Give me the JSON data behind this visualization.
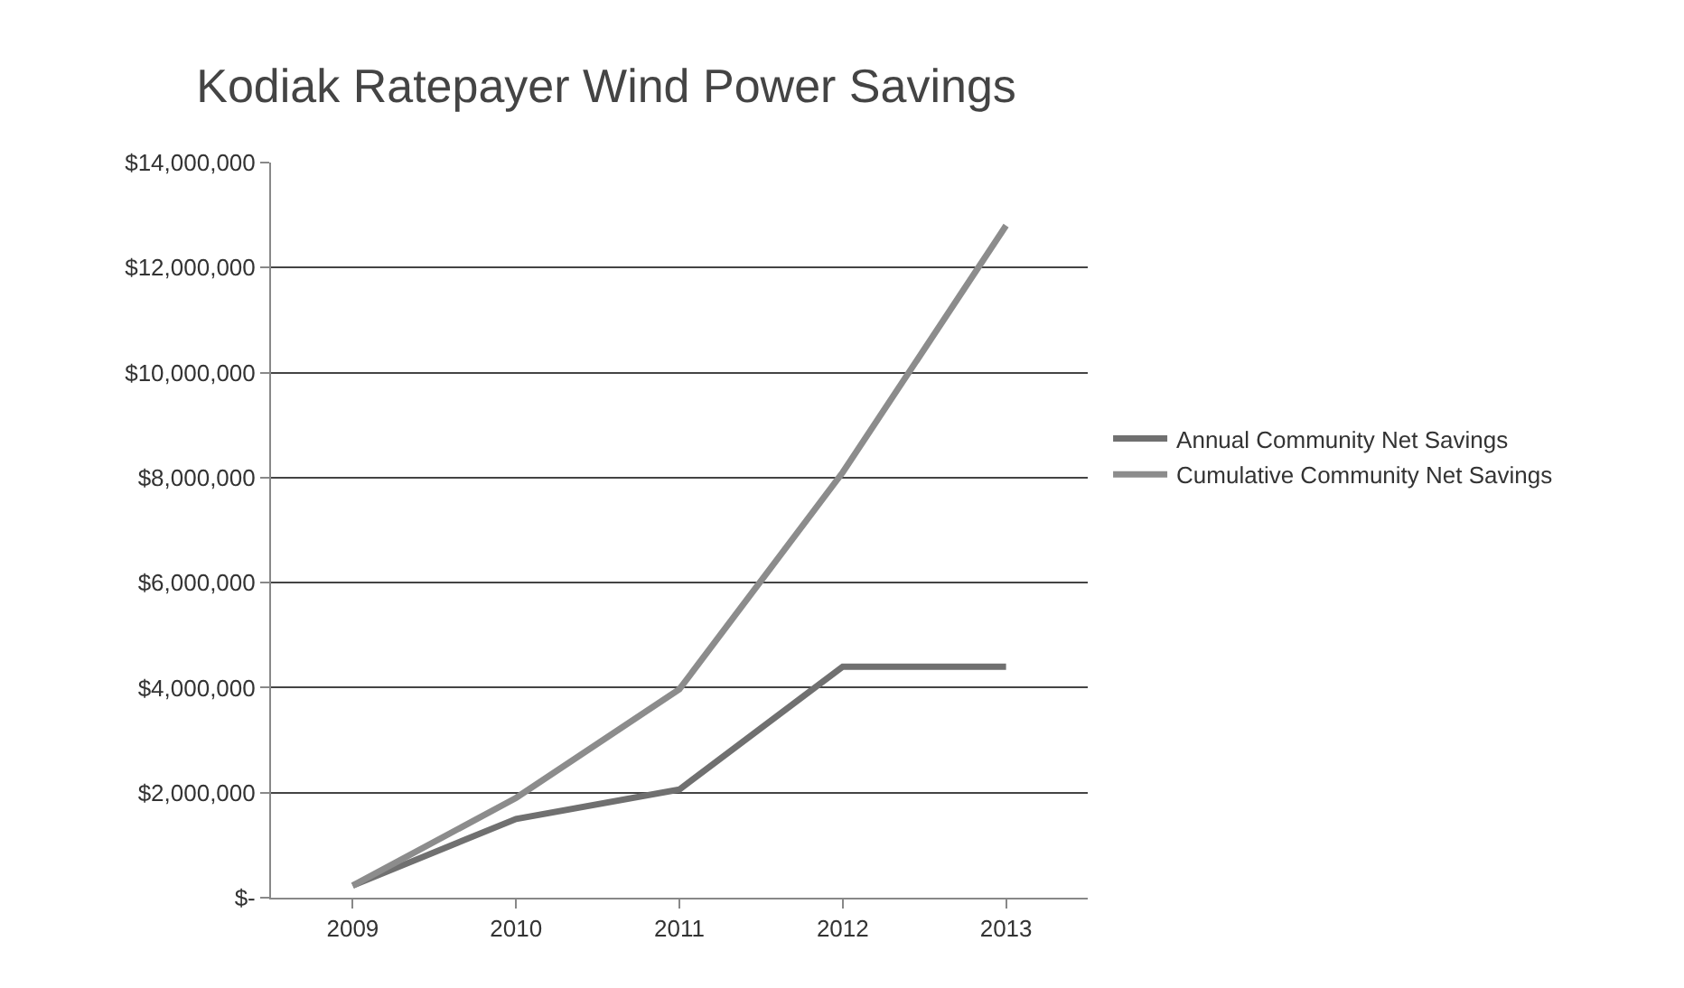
{
  "chart_data": {
    "type": "line",
    "title": "Kodiak Ratepayer Wind Power Savings",
    "categories": [
      "2009",
      "2010",
      "2011",
      "2012",
      "2013"
    ],
    "series": [
      {
        "name": "Annual Community Net Savings",
        "color": "#707070",
        "values": [
          230000,
          1500000,
          2060000,
          4400000,
          4400000
        ]
      },
      {
        "name": "Cumulative Community Net Savings",
        "color": "#8c8c8c",
        "values": [
          230000,
          1900000,
          3970000,
          8100000,
          12800000
        ]
      }
    ],
    "ylim": [
      0,
      14000000
    ],
    "yticks": [
      {
        "value": 0,
        "label": "$-"
      },
      {
        "value": 2000000,
        "label": "$2,000,000"
      },
      {
        "value": 4000000,
        "label": "$4,000,000"
      },
      {
        "value": 6000000,
        "label": "$6,000,000"
      },
      {
        "value": 8000000,
        "label": "$8,000,000"
      },
      {
        "value": 10000000,
        "label": "$10,000,000"
      },
      {
        "value": 12000000,
        "label": "$12,000,000"
      },
      {
        "value": 14000000,
        "label": "$14,000,000"
      }
    ],
    "grid": "y",
    "legend": "right",
    "marker": "none",
    "line_style": "solid"
  }
}
